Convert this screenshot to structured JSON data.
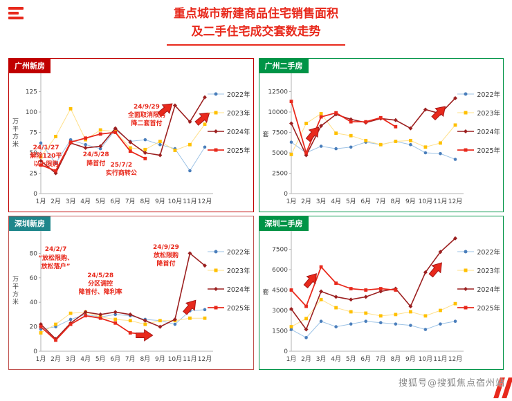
{
  "page": {
    "title_line1": "重点城市新建商品住宅销售面积",
    "title_line2": "及二手住宅成交套数走势",
    "watermark": "搜狐号@搜狐焦点宿州站",
    "accent_color": "#e8291c"
  },
  "chart_data": [
    {
      "type": "line",
      "title": "广州新房",
      "xlabel": "",
      "ylabel": "万平方米",
      "ylim": [
        0,
        150
      ],
      "yticks": [
        0,
        25,
        50,
        75,
        100,
        125,
        150
      ],
      "border": "#c00000",
      "label_bg": "#c00000",
      "grid": false,
      "legend_position": "right",
      "categories": [
        "1月",
        "2月",
        "3月",
        "4月",
        "5月",
        "6月",
        "7月",
        "8月",
        "9月",
        "10月",
        "11月",
        "12月"
      ],
      "series": [
        {
          "name": "2022年",
          "color": "#4a7ebb",
          "line": "#9dc3e6",
          "marker": "circle",
          "width": 1,
          "values": [
            62,
            37,
            66,
            60,
            55,
            78,
            64,
            66,
            60,
            55,
            28,
            57
          ]
        },
        {
          "name": "2023年",
          "color": "#ffc000",
          "line": "#ffe08a",
          "marker": "square",
          "width": 1,
          "values": [
            45,
            70,
            104,
            66,
            78,
            76,
            56,
            54,
            64,
            53,
            60,
            85
          ]
        },
        {
          "name": "2024年",
          "color": "#9c2020",
          "line": "#9c2020",
          "marker": "diamond",
          "width": 1.6,
          "values": [
            40,
            25,
            62,
            56,
            58,
            80,
            63,
            50,
            47,
            108,
            88,
            118
          ]
        },
        {
          "name": "2025年",
          "color": "#e8291c",
          "line": "#e8291c",
          "marker": "square",
          "width": 1.8,
          "values": [
            35,
            28,
            63,
            68,
            73,
            75,
            52,
            43,
            null,
            null,
            null,
            null
          ]
        }
      ],
      "annotations": [
        {
          "x": 0.35,
          "y": 46,
          "lines": [
            "24/1/27",
            "解除120平",
            "以上限购"
          ]
        },
        {
          "x": 3.7,
          "y": 42,
          "lines": [
            "24/5/28",
            "降首付"
          ]
        },
        {
          "x": 5.4,
          "y": 30,
          "lines": [
            "25/7/2",
            "实行商转公"
          ]
        },
        {
          "x": 7.1,
          "y": 96,
          "lines": [
            "24/9/29",
            "全面取消限购",
            "降二套首付"
          ]
        }
      ],
      "arrows": [
        {
          "x": 8.35,
          "y": 103,
          "angle": -40
        },
        {
          "x": 10.85,
          "y": 92,
          "angle": -40
        }
      ]
    },
    {
      "type": "line",
      "title": "广州二手房",
      "xlabel": "",
      "ylabel": "套",
      "ylim": [
        0,
        15000
      ],
      "yticks": [
        0,
        2500,
        5000,
        7500,
        10000,
        12500,
        15000
      ],
      "border": "#009447",
      "label_bg": "#009447",
      "grid": false,
      "legend_position": "right",
      "categories": [
        "1月",
        "2月",
        "3月",
        "4月",
        "5月",
        "6月",
        "7月",
        "8月",
        "9月",
        "10月",
        "11月",
        "12月"
      ],
      "series": [
        {
          "name": "2022年",
          "color": "#4a7ebb",
          "line": "#9dc3e6",
          "marker": "circle",
          "width": 1,
          "values": [
            6300,
            5000,
            5800,
            5500,
            5700,
            6300,
            6000,
            6400,
            6000,
            5000,
            4900,
            4200
          ]
        },
        {
          "name": "2023年",
          "color": "#ffc000",
          "line": "#ffe08a",
          "marker": "square",
          "width": 1,
          "values": [
            4800,
            8600,
            9800,
            7400,
            7100,
            6500,
            6000,
            6400,
            6500,
            5700,
            6200,
            8400
          ]
        },
        {
          "name": "2024年",
          "color": "#9c2020",
          "line": "#9c2020",
          "marker": "diamond",
          "width": 1.6,
          "values": [
            8600,
            4700,
            8300,
            9700,
            9100,
            8700,
            9200,
            9000,
            8000,
            10300,
            9800,
            11700
          ]
        },
        {
          "name": "2025年",
          "color": "#e8291c",
          "line": "#e8291c",
          "marker": "square",
          "width": 1.8,
          "values": [
            11300,
            5000,
            9400,
            9900,
            8800,
            8800,
            9300,
            8200,
            null,
            null,
            null,
            null
          ]
        }
      ],
      "annotations": [],
      "arrows": [
        {
          "x": 1.45,
          "y": 7300,
          "angle": -50
        },
        {
          "x": 9.9,
          "y": 9900,
          "angle": -45
        }
      ]
    },
    {
      "type": "line",
      "title": "深圳新房",
      "xlabel": "",
      "ylabel": "万平方米",
      "ylim": [
        0,
        100
      ],
      "yticks": [
        0,
        20,
        40,
        60,
        80,
        100
      ],
      "border": "#c0504d",
      "label_bg": "#1f868b",
      "grid": false,
      "legend_position": "right",
      "categories": [
        "1月",
        "2月",
        "3月",
        "4月",
        "5月",
        "6月",
        "7月",
        "8月",
        "9月",
        "10月",
        "11月",
        "12月"
      ],
      "series": [
        {
          "name": "2022年",
          "color": "#4a7ebb",
          "line": "#9dc3e6",
          "marker": "circle",
          "width": 1,
          "values": [
            18,
            20,
            26,
            30,
            28,
            30,
            29,
            26,
            25,
            22,
            33,
            34
          ]
        },
        {
          "name": "2023年",
          "color": "#ffc000",
          "line": "#ffe08a",
          "marker": "square",
          "width": 1,
          "values": [
            15,
            22,
            31,
            32,
            28,
            26,
            25,
            22,
            25,
            25,
            27,
            27
          ]
        },
        {
          "name": "2024年",
          "color": "#9c2020",
          "line": "#9c2020",
          "marker": "diamond",
          "width": 1.6,
          "values": [
            22,
            10,
            23,
            32,
            30,
            32,
            30,
            25,
            20,
            26,
            80,
            70
          ]
        },
        {
          "name": "2025年",
          "color": "#e8291c",
          "line": "#e8291c",
          "marker": "square",
          "width": 1.8,
          "values": [
            20,
            9,
            22,
            29,
            27,
            23,
            15,
            14,
            null,
            null,
            null,
            null
          ]
        }
      ],
      "annotations": [
        {
          "x": 1.0,
          "y": 76,
          "lines": [
            "24/2/7",
            "“放松限购、",
            "放松落户”"
          ]
        },
        {
          "x": 4.0,
          "y": 55,
          "lines": [
            "24/5/28",
            "分区调控",
            "降首付、降利率"
          ]
        },
        {
          "x": 8.4,
          "y": 78,
          "lines": [
            "24/9/29",
            "放松限购",
            "降首付"
          ]
        }
      ],
      "arrows": [
        {
          "x": 6.9,
          "y": 13,
          "angle": 0
        },
        {
          "x": 10.0,
          "y": 36,
          "angle": -50
        }
      ]
    },
    {
      "type": "line",
      "title": "深圳二手房",
      "xlabel": "",
      "ylabel": "套",
      "ylim": [
        0,
        9000
      ],
      "yticks": [
        0,
        1500,
        3000,
        4500,
        6000,
        7500,
        9000
      ],
      "border": "#009447",
      "label_bg": "#009447",
      "grid": false,
      "legend_position": "right",
      "categories": [
        "1月",
        "2月",
        "3月",
        "4月",
        "5月",
        "6月",
        "7月",
        "8月",
        "9月",
        "10月",
        "11月",
        "12月"
      ],
      "series": [
        {
          "name": "2022年",
          "color": "#4a7ebb",
          "line": "#9dc3e6",
          "marker": "circle",
          "width": 1,
          "values": [
            1600,
            1000,
            2200,
            1800,
            2000,
            2200,
            2100,
            2000,
            1900,
            1600,
            2000,
            2200
          ]
        },
        {
          "name": "2023年",
          "color": "#ffc000",
          "line": "#ffe08a",
          "marker": "square",
          "width": 1,
          "values": [
            1800,
            2400,
            3800,
            3200,
            2900,
            2800,
            2600,
            2700,
            2900,
            2600,
            3000,
            3500
          ]
        },
        {
          "name": "2024年",
          "color": "#9c2020",
          "line": "#9c2020",
          "marker": "diamond",
          "width": 1.6,
          "values": [
            3100,
            1600,
            4400,
            4000,
            3800,
            4000,
            4400,
            4600,
            3300,
            5800,
            7300,
            8300
          ]
        },
        {
          "name": "2025年",
          "color": "#e8291c",
          "line": "#e8291c",
          "marker": "square",
          "width": 1.8,
          "values": [
            4500,
            3300,
            6200,
            5000,
            4600,
            4500,
            4600,
            4500,
            null,
            null,
            null,
            null
          ]
        }
      ],
      "annotations": [],
      "arrows": [
        {
          "x": 1.3,
          "y": 5200,
          "angle": -50
        },
        {
          "x": 9.7,
          "y": 6000,
          "angle": -50
        }
      ]
    }
  ]
}
